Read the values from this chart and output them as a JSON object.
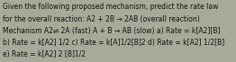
{
  "lines": [
    "Given the following proposed mechanism, predict the rate law",
    "for the overall reaction: A2 + 2B → 2AB (overall reaction)",
    "Mechanism A2⇌ 2A (fast) A + B → AB (slow) a) Rate = k[A2][B]",
    "b) Rate = k[A2] 1/2 c) Rate = k[A]1/2[B]2 d) Rate = k[A2] 1/2[B]",
    "e) Rate = k[A2] 2 [B]1/2"
  ],
  "bg_color": "#a9a99a",
  "text_color": "#111111",
  "font_size": 5.5
}
